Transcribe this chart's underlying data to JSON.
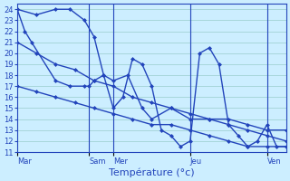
{
  "background_color": "#cceeff",
  "grid_color": "#99cccc",
  "line_color": "#2244bb",
  "marker_style": "D",
  "marker_size": 2.0,
  "line_width": 1.0,
  "xlabel": "Température (°c)",
  "xlabel_fontsize": 8,
  "tick_fontsize": 6,
  "ylim": [
    11,
    24.5
  ],
  "yticks": [
    11,
    12,
    13,
    14,
    15,
    16,
    17,
    18,
    19,
    20,
    21,
    22,
    23,
    24
  ],
  "day_labels": [
    "Mar",
    "Sam",
    "Mer",
    "Jeu",
    "Ven"
  ],
  "day_x": [
    0,
    7.5,
    10,
    18,
    26
  ],
  "vline_x": [
    7.5,
    10,
    18,
    26
  ],
  "xlim": [
    0,
    28
  ],
  "series": [
    {
      "x": [
        0,
        0.8,
        1.5,
        4,
        5.5,
        7,
        7.5,
        8,
        9,
        10,
        11,
        12,
        13,
        14,
        15,
        16,
        17,
        18,
        19,
        20,
        21,
        22,
        23,
        24,
        25,
        26,
        27,
        28
      ],
      "y": [
        24,
        22,
        21,
        17.5,
        17,
        17,
        17,
        17.5,
        18,
        15,
        16,
        19.5,
        19,
        17,
        13,
        12.5,
        11.5,
        12,
        20,
        20.5,
        19,
        13.5,
        12.5,
        11.5,
        12,
        13.5,
        11.5,
        11.5
      ]
    },
    {
      "x": [
        0,
        2,
        4,
        5.5,
        7,
        8,
        9,
        10,
        11.5,
        13,
        14,
        16,
        18,
        20,
        22,
        24,
        26,
        28
      ],
      "y": [
        24,
        23.5,
        24,
        24,
        23,
        21.5,
        18,
        17.5,
        18,
        15,
        14,
        15,
        14,
        14,
        14,
        13.5,
        13,
        13
      ]
    },
    {
      "x": [
        0,
        2,
        4,
        6,
        8,
        10,
        12,
        14,
        16,
        18,
        20,
        22,
        24,
        26,
        28
      ],
      "y": [
        21,
        20,
        19,
        18.5,
        17.5,
        17,
        16,
        15.5,
        15,
        14.5,
        14,
        13.5,
        13,
        12.5,
        12
      ]
    },
    {
      "x": [
        0,
        2,
        4,
        6,
        8,
        10,
        12,
        14,
        16,
        18,
        20,
        22,
        24,
        26,
        28
      ],
      "y": [
        17,
        16.5,
        16,
        15.5,
        15,
        14.5,
        14,
        13.5,
        13.5,
        13,
        12.5,
        12,
        11.5,
        11.5,
        11.5
      ]
    }
  ]
}
